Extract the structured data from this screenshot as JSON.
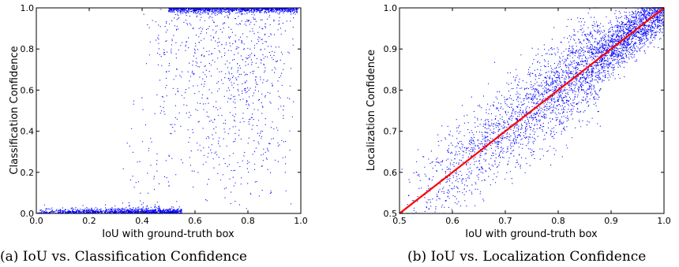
{
  "chart_data": [
    {
      "type": "scatter",
      "caption": "(a) IoU vs. Classification Confidence",
      "xlabel": "IoU with ground-truth box",
      "ylabel": "Classification Confidence",
      "xlim": [
        0.0,
        1.0
      ],
      "ylim": [
        0.0,
        1.0
      ],
      "xticks": [
        "0.0",
        "0.2",
        "0.4",
        "0.6",
        "0.8",
        "1.0"
      ],
      "yticks": [
        "0.0",
        "0.2",
        "0.4",
        "0.6",
        "0.8",
        "1.0"
      ],
      "grid": false,
      "point_color": "#0000ff",
      "approx_point_count": 3000,
      "distribution": "dense band near confidence 0.0 for IoU below 0.5; dense band near confidence 1.0 for IoU above 0.5; sparse points spread across the full range",
      "reference_line": null
    },
    {
      "type": "scatter",
      "caption": "(b) IoU vs. Localization Confidence",
      "xlabel": "IoU with ground-truth box",
      "ylabel": "Localization Confidence",
      "xlim": [
        0.5,
        1.0
      ],
      "ylim": [
        0.5,
        1.0
      ],
      "xticks": [
        "0.5",
        "0.6",
        "0.7",
        "0.8",
        "0.9",
        "1.0"
      ],
      "yticks": [
        "0.5",
        "0.6",
        "0.7",
        "0.8",
        "0.9",
        "1.0"
      ],
      "grid": false,
      "point_color": "#0000ff",
      "approx_point_count": 4000,
      "distribution": "points cluster around the diagonal y = x, spread roughly 0.1 above and below",
      "reference_line": {
        "x": [
          0.5,
          1.0
        ],
        "y": [
          0.5,
          1.0
        ],
        "color": "#ff0000"
      }
    }
  ]
}
